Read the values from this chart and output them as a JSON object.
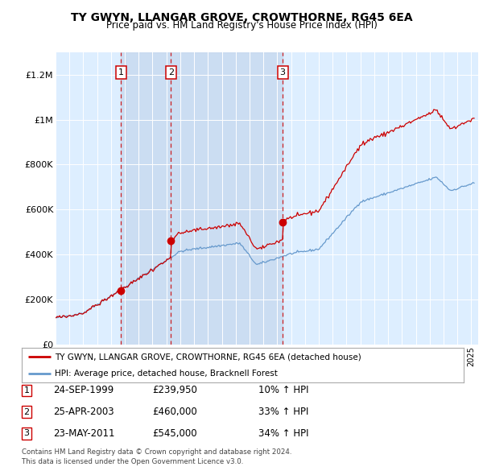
{
  "title": "TY GWYN, LLANGAR GROVE, CROWTHORNE, RG45 6EA",
  "subtitle": "Price paid vs. HM Land Registry's House Price Index (HPI)",
  "legend_label_red": "TY GWYN, LLANGAR GROVE, CROWTHORNE, RG45 6EA (detached house)",
  "legend_label_blue": "HPI: Average price, detached house, Bracknell Forest",
  "footer1": "Contains HM Land Registry data © Crown copyright and database right 2024.",
  "footer2": "This data is licensed under the Open Government Licence v3.0.",
  "sales": [
    {
      "num": 1,
      "date": "24-SEP-1999",
      "price": 239950,
      "hpi_pct": "10% ↑ HPI"
    },
    {
      "num": 2,
      "date": "25-APR-2003",
      "price": 460000,
      "hpi_pct": "33% ↑ HPI"
    },
    {
      "num": 3,
      "date": "23-MAY-2011",
      "price": 545000,
      "hpi_pct": "34% ↑ HPI"
    }
  ],
  "sale_dates_decimal": [
    1999.73,
    2003.32,
    2011.39
  ],
  "ylim": [
    0,
    1300000
  ],
  "yticks": [
    0,
    200000,
    400000,
    600000,
    800000,
    1000000,
    1200000
  ],
  "ytick_labels": [
    "£0",
    "£200K",
    "£400K",
    "£600K",
    "£800K",
    "£1M",
    "£1.2M"
  ],
  "xlim_start": 1995.0,
  "xlim_end": 2025.5,
  "plot_bg": "#ddeeff",
  "grid_color": "#ffffff",
  "red_line_color": "#cc0000",
  "blue_line_color": "#6699cc",
  "dashed_color": "#cc0000",
  "shade_color": "#c8daf0"
}
